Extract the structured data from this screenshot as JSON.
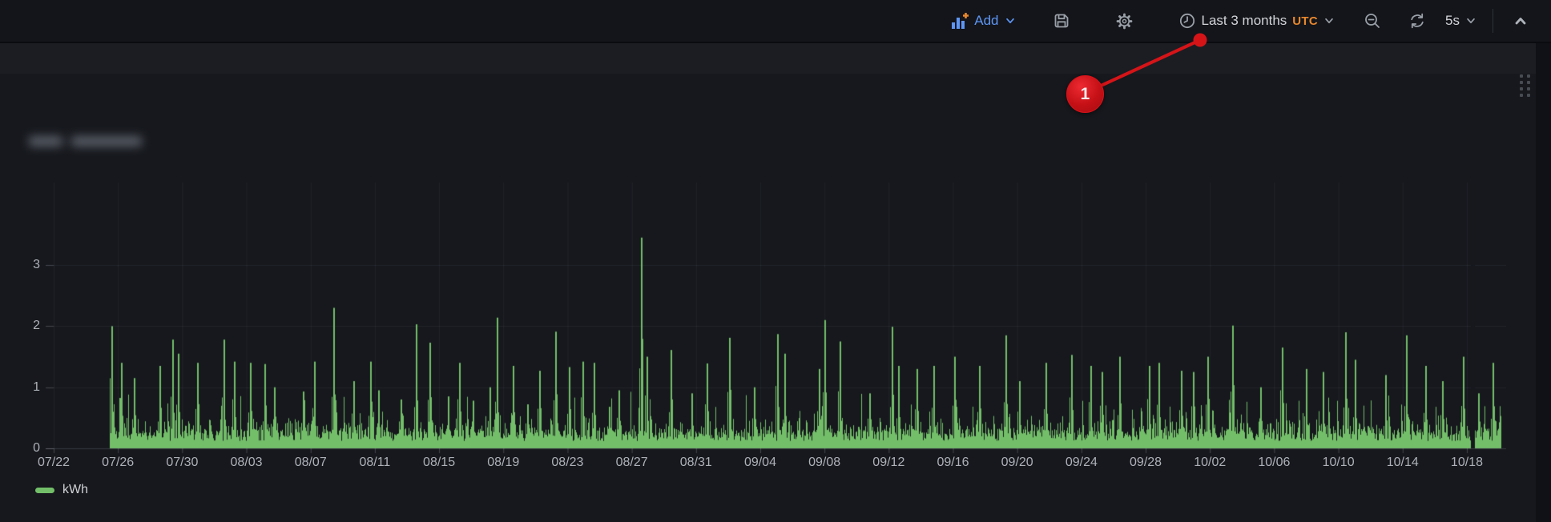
{
  "toolbar": {
    "add": {
      "label": "Add"
    },
    "time_range": {
      "label": "Last 3 months",
      "timezone": "UTC"
    },
    "refresh_interval": "5s",
    "icons": {
      "add": "bar-chart-plus-icon",
      "save": "save-icon",
      "settings": "gear-icon",
      "time": "clock-icon",
      "zoom_out": "magnifier-minus-icon",
      "refresh": "refresh-icon",
      "caret": "chevron-down-icon",
      "collapse": "chevron-up-icon"
    }
  },
  "panel": {
    "title_redacted": true,
    "legend": [
      {
        "label": "kWh",
        "color": "#73bf69"
      }
    ],
    "drag_handle_icon": "drag-handle-dots-icon"
  },
  "annotation": {
    "label": "1",
    "color": "#d51418",
    "points_to": "time-range-picker"
  },
  "colors": {
    "toolbar_bg": "#13151a",
    "panel_bg": "#16181d",
    "subbar_bg": "#1b1d23",
    "series_green": "#73bf69",
    "link_blue": "#5e96f5",
    "utc_orange": "#e8872e",
    "annotation_red": "#d51418"
  },
  "chart_data": {
    "type": "area",
    "title": "",
    "xlabel": "",
    "ylabel": "kWh",
    "legend_position": "bottom-left",
    "grid": true,
    "y_ticks": [
      0,
      1,
      2,
      3
    ],
    "ylim": [
      0,
      3.7
    ],
    "x_tick_labels": [
      "07/22",
      "07/26",
      "07/30",
      "08/03",
      "08/07",
      "08/11",
      "08/15",
      "08/19",
      "08/23",
      "08/27",
      "08/31",
      "09/04",
      "09/08",
      "09/12",
      "09/16",
      "09/20",
      "09/24",
      "09/28",
      "10/02",
      "10/06",
      "10/10",
      "10/14",
      "10/18"
    ],
    "series": [
      {
        "name": "kWh",
        "color": "#73bf69"
      }
    ],
    "data_start_label": "07/25",
    "data_end_label": "10/20",
    "baseline_noise_range": [
      0.12,
      0.55
    ],
    "max_value": 3.45,
    "max_value_at": "08/27",
    "spikes": [
      [
        0.001,
        2.0
      ],
      [
        0.008,
        1.4
      ],
      [
        0.017,
        1.15
      ],
      [
        0.036,
        1.35
      ],
      [
        0.045,
        1.78
      ],
      [
        0.049,
        1.55
      ],
      [
        0.063,
        1.4
      ],
      [
        0.082,
        1.78
      ],
      [
        0.089,
        1.42
      ],
      [
        0.101,
        1.4
      ],
      [
        0.111,
        1.38
      ],
      [
        0.118,
        1.0
      ],
      [
        0.139,
        0.93
      ],
      [
        0.147,
        1.42
      ],
      [
        0.161,
        2.3
      ],
      [
        0.175,
        1.1
      ],
      [
        0.187,
        1.42
      ],
      [
        0.193,
        0.95
      ],
      [
        0.209,
        0.8
      ],
      [
        0.22,
        2.03
      ],
      [
        0.23,
        1.73
      ],
      [
        0.243,
        0.85
      ],
      [
        0.251,
        1.4
      ],
      [
        0.261,
        0.78
      ],
      [
        0.273,
        1.0
      ],
      [
        0.278,
        2.14
      ],
      [
        0.29,
        1.35
      ],
      [
        0.3,
        0.72
      ],
      [
        0.309,
        1.27
      ],
      [
        0.32,
        1.91
      ],
      [
        0.33,
        1.33
      ],
      [
        0.34,
        1.42
      ],
      [
        0.348,
        1.4
      ],
      [
        0.359,
        0.68
      ],
      [
        0.366,
        0.95
      ],
      [
        0.382,
        3.45
      ],
      [
        0.386,
        1.5
      ],
      [
        0.403,
        1.61
      ],
      [
        0.418,
        0.9
      ],
      [
        0.429,
        1.39
      ],
      [
        0.445,
        1.81
      ],
      [
        0.463,
        1.0
      ],
      [
        0.48,
        1.87
      ],
      [
        0.485,
        1.55
      ],
      [
        0.51,
        1.3
      ],
      [
        0.514,
        2.1
      ],
      [
        0.525,
        1.75
      ],
      [
        0.546,
        0.9
      ],
      [
        0.562,
        1.99
      ],
      [
        0.567,
        1.35
      ],
      [
        0.58,
        1.3
      ],
      [
        0.592,
        1.35
      ],
      [
        0.607,
        1.5
      ],
      [
        0.625,
        1.35
      ],
      [
        0.644,
        1.85
      ],
      [
        0.654,
        1.1
      ],
      [
        0.673,
        1.4
      ],
      [
        0.691,
        1.53
      ],
      [
        0.705,
        1.35
      ],
      [
        0.713,
        1.25
      ],
      [
        0.726,
        1.5
      ],
      [
        0.747,
        1.35
      ],
      [
        0.754,
        1.4
      ],
      [
        0.77,
        1.27
      ],
      [
        0.779,
        1.25
      ],
      [
        0.789,
        1.5
      ],
      [
        0.807,
        2.01
      ],
      [
        0.827,
        1.0
      ],
      [
        0.843,
        1.65
      ],
      [
        0.86,
        1.3
      ],
      [
        0.872,
        1.25
      ],
      [
        0.888,
        1.9
      ],
      [
        0.895,
        1.45
      ],
      [
        0.917,
        1.2
      ],
      [
        0.932,
        1.85
      ],
      [
        0.946,
        1.35
      ],
      [
        0.958,
        1.1
      ],
      [
        0.973,
        1.5
      ],
      [
        0.984,
        0.9
      ],
      [
        0.994,
        1.4
      ]
    ],
    "data_gaps": [
      [
        0.9785,
        0.9815
      ]
    ],
    "seed": 1337
  }
}
